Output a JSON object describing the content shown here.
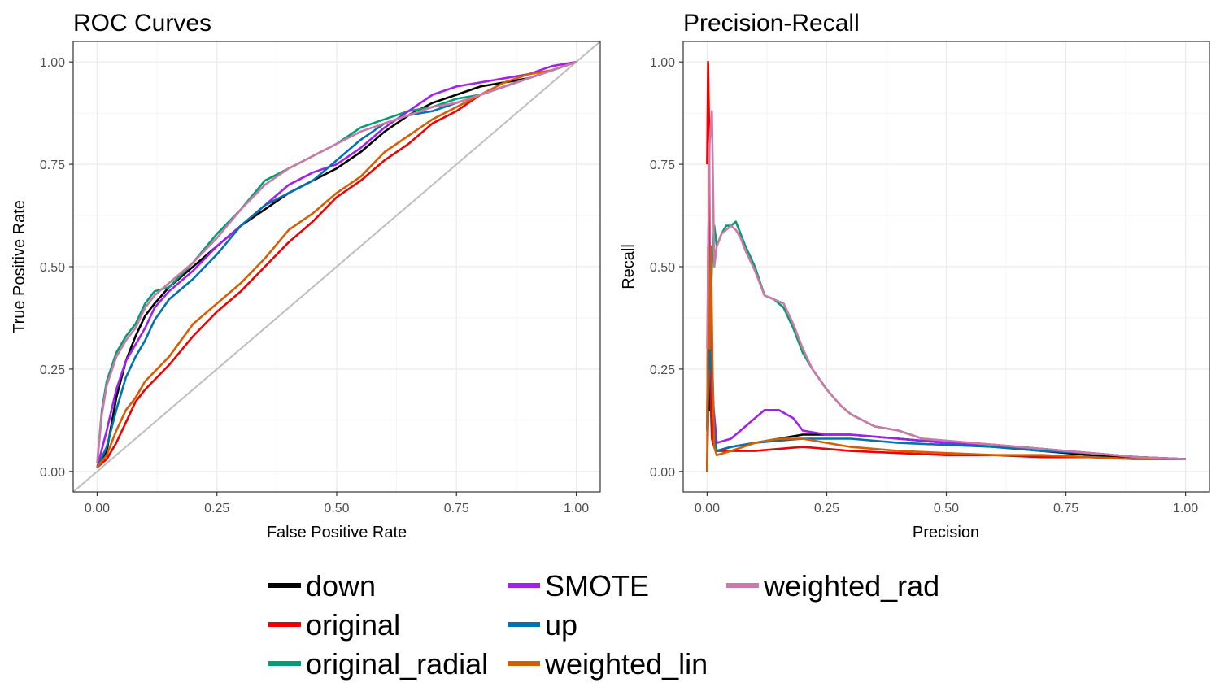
{
  "colors": {
    "down": "#000000",
    "original": "#f00000",
    "original_radial": "#009e73",
    "SMOTE": "#a020f0",
    "up": "#0072b2",
    "weighted_lin": "#d55e00",
    "weighted_rad": "#cc79a7",
    "diagonal": "#bebebe"
  },
  "legend": {
    "items": [
      {
        "label": "down",
        "color": "#000000"
      },
      {
        "label": "original",
        "color": "#f00000"
      },
      {
        "label": "original_radial",
        "color": "#009e73"
      },
      {
        "label": "SMOTE",
        "color": "#a020f0"
      },
      {
        "label": "up",
        "color": "#0072b2"
      },
      {
        "label": "weighted_lin",
        "color": "#d55e00"
      },
      {
        "label": "weighted_rad",
        "color": "#cc79a7"
      }
    ]
  },
  "chart_data": [
    {
      "type": "line",
      "title": "ROC Curves",
      "xlabel": "False Positive Rate",
      "ylabel": "True Positive Rate",
      "xlim": [
        -0.05,
        1.05
      ],
      "ylim": [
        -0.05,
        1.05
      ],
      "x_ticks": [
        "0.00",
        "0.25",
        "0.50",
        "0.75",
        "1.00"
      ],
      "y_ticks": [
        "0.00",
        "0.25",
        "0.50",
        "0.75",
        "1.00"
      ],
      "grid": true,
      "reference_line": {
        "x": [
          -0.05,
          1.05
        ],
        "y": [
          -0.05,
          1.05
        ]
      },
      "series": [
        {
          "name": "down",
          "x": [
            0,
            0.02,
            0.04,
            0.06,
            0.08,
            0.1,
            0.12,
            0.15,
            0.2,
            0.25,
            0.3,
            0.35,
            0.4,
            0.45,
            0.5,
            0.55,
            0.6,
            0.65,
            0.7,
            0.75,
            0.8,
            0.85,
            0.9,
            0.95,
            1.0
          ],
          "y": [
            0.01,
            0.05,
            0.18,
            0.27,
            0.33,
            0.38,
            0.41,
            0.45,
            0.5,
            0.55,
            0.6,
            0.64,
            0.68,
            0.71,
            0.74,
            0.78,
            0.83,
            0.87,
            0.9,
            0.92,
            0.94,
            0.95,
            0.96,
            0.98,
            1.0
          ]
        },
        {
          "name": "original",
          "x": [
            0,
            0.02,
            0.04,
            0.06,
            0.08,
            0.1,
            0.15,
            0.2,
            0.25,
            0.3,
            0.35,
            0.4,
            0.45,
            0.5,
            0.55,
            0.6,
            0.65,
            0.7,
            0.75,
            0.8,
            0.85,
            0.9,
            0.95,
            1.0
          ],
          "y": [
            0.01,
            0.03,
            0.07,
            0.12,
            0.17,
            0.2,
            0.26,
            0.33,
            0.39,
            0.44,
            0.5,
            0.56,
            0.61,
            0.67,
            0.71,
            0.76,
            0.8,
            0.85,
            0.88,
            0.92,
            0.94,
            0.96,
            0.98,
            1.0
          ]
        },
        {
          "name": "original_radial",
          "x": [
            0,
            0.01,
            0.02,
            0.04,
            0.06,
            0.08,
            0.1,
            0.12,
            0.15,
            0.2,
            0.25,
            0.3,
            0.35,
            0.4,
            0.45,
            0.5,
            0.55,
            0.6,
            0.65,
            0.7,
            0.75,
            0.8,
            0.85,
            0.9,
            0.95,
            1.0
          ],
          "y": [
            0.02,
            0.15,
            0.22,
            0.29,
            0.33,
            0.36,
            0.41,
            0.44,
            0.45,
            0.51,
            0.58,
            0.64,
            0.71,
            0.74,
            0.77,
            0.8,
            0.84,
            0.86,
            0.88,
            0.89,
            0.91,
            0.92,
            0.94,
            0.96,
            0.98,
            1.0
          ]
        },
        {
          "name": "SMOTE",
          "x": [
            0,
            0.02,
            0.04,
            0.06,
            0.08,
            0.1,
            0.12,
            0.15,
            0.2,
            0.25,
            0.3,
            0.35,
            0.4,
            0.45,
            0.5,
            0.55,
            0.6,
            0.65,
            0.7,
            0.75,
            0.8,
            0.85,
            0.9,
            0.95,
            1.0
          ],
          "y": [
            0.01,
            0.1,
            0.2,
            0.27,
            0.31,
            0.35,
            0.4,
            0.44,
            0.49,
            0.55,
            0.6,
            0.65,
            0.7,
            0.73,
            0.75,
            0.79,
            0.84,
            0.88,
            0.92,
            0.94,
            0.95,
            0.96,
            0.97,
            0.99,
            1.0
          ]
        },
        {
          "name": "up",
          "x": [
            0,
            0.02,
            0.04,
            0.06,
            0.08,
            0.1,
            0.12,
            0.15,
            0.2,
            0.25,
            0.3,
            0.35,
            0.4,
            0.45,
            0.5,
            0.55,
            0.6,
            0.65,
            0.7,
            0.75,
            0.8,
            0.85,
            0.9,
            0.95,
            1.0
          ],
          "y": [
            0.01,
            0.06,
            0.15,
            0.23,
            0.28,
            0.32,
            0.37,
            0.42,
            0.47,
            0.53,
            0.6,
            0.65,
            0.68,
            0.71,
            0.76,
            0.81,
            0.85,
            0.87,
            0.88,
            0.9,
            0.92,
            0.94,
            0.96,
            0.98,
            1.0
          ]
        },
        {
          "name": "weighted_lin",
          "x": [
            0,
            0.02,
            0.04,
            0.06,
            0.08,
            0.1,
            0.15,
            0.2,
            0.25,
            0.3,
            0.35,
            0.4,
            0.45,
            0.5,
            0.55,
            0.6,
            0.65,
            0.7,
            0.75,
            0.8,
            0.85,
            0.9,
            0.95,
            1.0
          ],
          "y": [
            0.01,
            0.04,
            0.1,
            0.15,
            0.18,
            0.22,
            0.28,
            0.36,
            0.41,
            0.46,
            0.52,
            0.59,
            0.63,
            0.68,
            0.72,
            0.78,
            0.82,
            0.86,
            0.89,
            0.92,
            0.95,
            0.97,
            0.98,
            1.0
          ]
        },
        {
          "name": "weighted_rad",
          "x": [
            0,
            0.01,
            0.02,
            0.04,
            0.06,
            0.08,
            0.1,
            0.12,
            0.15,
            0.2,
            0.25,
            0.3,
            0.35,
            0.4,
            0.45,
            0.5,
            0.55,
            0.6,
            0.65,
            0.7,
            0.75,
            0.8,
            0.85,
            0.9,
            0.95,
            1.0
          ],
          "y": [
            0.02,
            0.14,
            0.21,
            0.28,
            0.32,
            0.35,
            0.4,
            0.43,
            0.46,
            0.51,
            0.57,
            0.64,
            0.7,
            0.74,
            0.77,
            0.8,
            0.83,
            0.85,
            0.87,
            0.89,
            0.9,
            0.92,
            0.94,
            0.96,
            0.98,
            1.0
          ]
        }
      ]
    },
    {
      "type": "line",
      "title": "Precision-Recall",
      "xlabel": "Precision",
      "ylabel": "Recall",
      "xlim": [
        -0.05,
        1.05
      ],
      "ylim": [
        -0.05,
        1.05
      ],
      "x_ticks": [
        "0.00",
        "0.25",
        "0.50",
        "0.75",
        "1.00"
      ],
      "y_ticks": [
        "0.00",
        "0.25",
        "0.50",
        "0.75",
        "1.00"
      ],
      "grid": true,
      "series": [
        {
          "name": "down",
          "x": [
            0,
            0.003,
            0.006,
            0.009,
            0.012,
            0.015,
            0.02,
            0.05,
            0.1,
            0.15,
            0.2,
            0.3,
            0.4,
            0.5,
            0.6,
            0.7,
            0.8,
            0.9,
            1.0
          ],
          "y": [
            0.0,
            0.25,
            0.15,
            0.3,
            0.1,
            0.06,
            0.05,
            0.06,
            0.07,
            0.08,
            0.09,
            0.09,
            0.08,
            0.07,
            0.06,
            0.05,
            0.04,
            0.035,
            0.03
          ]
        },
        {
          "name": "original",
          "x": [
            0,
            0.002,
            0.004,
            0.006,
            0.008,
            0.01,
            0.015,
            0.02,
            0.05,
            0.1,
            0.15,
            0.2,
            0.25,
            0.3,
            0.4,
            0.5,
            0.6,
            0.7,
            0.8,
            0.9,
            1.0
          ],
          "y": [
            0.75,
            1.0,
            0.85,
            0.3,
            0.15,
            0.08,
            0.06,
            0.05,
            0.05,
            0.05,
            0.055,
            0.06,
            0.055,
            0.05,
            0.045,
            0.04,
            0.04,
            0.035,
            0.035,
            0.03,
            0.03
          ]
        },
        {
          "name": "original_radial",
          "x": [
            0,
            0.005,
            0.01,
            0.015,
            0.02,
            0.03,
            0.04,
            0.05,
            0.06,
            0.07,
            0.08,
            0.1,
            0.12,
            0.14,
            0.16,
            0.18,
            0.2,
            0.22,
            0.25,
            0.28,
            0.3,
            0.35,
            0.4,
            0.45,
            0.5,
            0.6,
            0.7,
            0.8,
            0.9,
            1.0
          ],
          "y": [
            0.1,
            0.3,
            0.5,
            0.6,
            0.55,
            0.58,
            0.6,
            0.6,
            0.61,
            0.58,
            0.55,
            0.5,
            0.43,
            0.42,
            0.4,
            0.35,
            0.29,
            0.25,
            0.2,
            0.16,
            0.14,
            0.11,
            0.1,
            0.08,
            0.075,
            0.065,
            0.055,
            0.045,
            0.035,
            0.03
          ]
        },
        {
          "name": "SMOTE",
          "x": [
            0,
            0.003,
            0.006,
            0.01,
            0.02,
            0.05,
            0.08,
            0.1,
            0.12,
            0.15,
            0.18,
            0.2,
            0.25,
            0.3,
            0.4,
            0.5,
            0.6,
            0.7,
            0.8,
            0.9,
            1.0
          ],
          "y": [
            0.1,
            0.6,
            0.4,
            0.2,
            0.07,
            0.08,
            0.11,
            0.13,
            0.15,
            0.15,
            0.13,
            0.1,
            0.09,
            0.09,
            0.08,
            0.07,
            0.065,
            0.055,
            0.045,
            0.035,
            0.03
          ]
        },
        {
          "name": "up",
          "x": [
            0,
            0.003,
            0.006,
            0.01,
            0.015,
            0.02,
            0.05,
            0.1,
            0.15,
            0.2,
            0.3,
            0.4,
            0.5,
            0.6,
            0.7,
            0.8,
            0.9,
            1.0
          ],
          "y": [
            0.1,
            0.5,
            0.25,
            0.28,
            0.1,
            0.05,
            0.06,
            0.07,
            0.075,
            0.08,
            0.08,
            0.07,
            0.065,
            0.06,
            0.05,
            0.045,
            0.035,
            0.03
          ]
        },
        {
          "name": "weighted_lin",
          "x": [
            0,
            0.002,
            0.005,
            0.008,
            0.012,
            0.015,
            0.02,
            0.05,
            0.1,
            0.15,
            0.2,
            0.25,
            0.3,
            0.4,
            0.5,
            0.6,
            0.7,
            0.8,
            0.9,
            1.0
          ],
          "y": [
            0.0,
            0.55,
            0.3,
            0.55,
            0.2,
            0.06,
            0.04,
            0.05,
            0.07,
            0.08,
            0.08,
            0.07,
            0.06,
            0.05,
            0.045,
            0.04,
            0.04,
            0.035,
            0.03,
            0.03
          ]
        },
        {
          "name": "weighted_rad",
          "x": [
            0,
            0.005,
            0.01,
            0.015,
            0.02,
            0.03,
            0.04,
            0.05,
            0.06,
            0.07,
            0.08,
            0.1,
            0.12,
            0.14,
            0.16,
            0.18,
            0.2,
            0.22,
            0.25,
            0.28,
            0.3,
            0.35,
            0.4,
            0.45,
            0.5,
            0.6,
            0.7,
            0.8,
            0.9,
            1.0
          ],
          "y": [
            0.3,
            0.8,
            0.88,
            0.5,
            0.55,
            0.58,
            0.59,
            0.6,
            0.59,
            0.57,
            0.54,
            0.49,
            0.43,
            0.42,
            0.41,
            0.36,
            0.3,
            0.25,
            0.2,
            0.16,
            0.14,
            0.11,
            0.1,
            0.08,
            0.075,
            0.065,
            0.055,
            0.045,
            0.035,
            0.03
          ]
        }
      ]
    }
  ]
}
